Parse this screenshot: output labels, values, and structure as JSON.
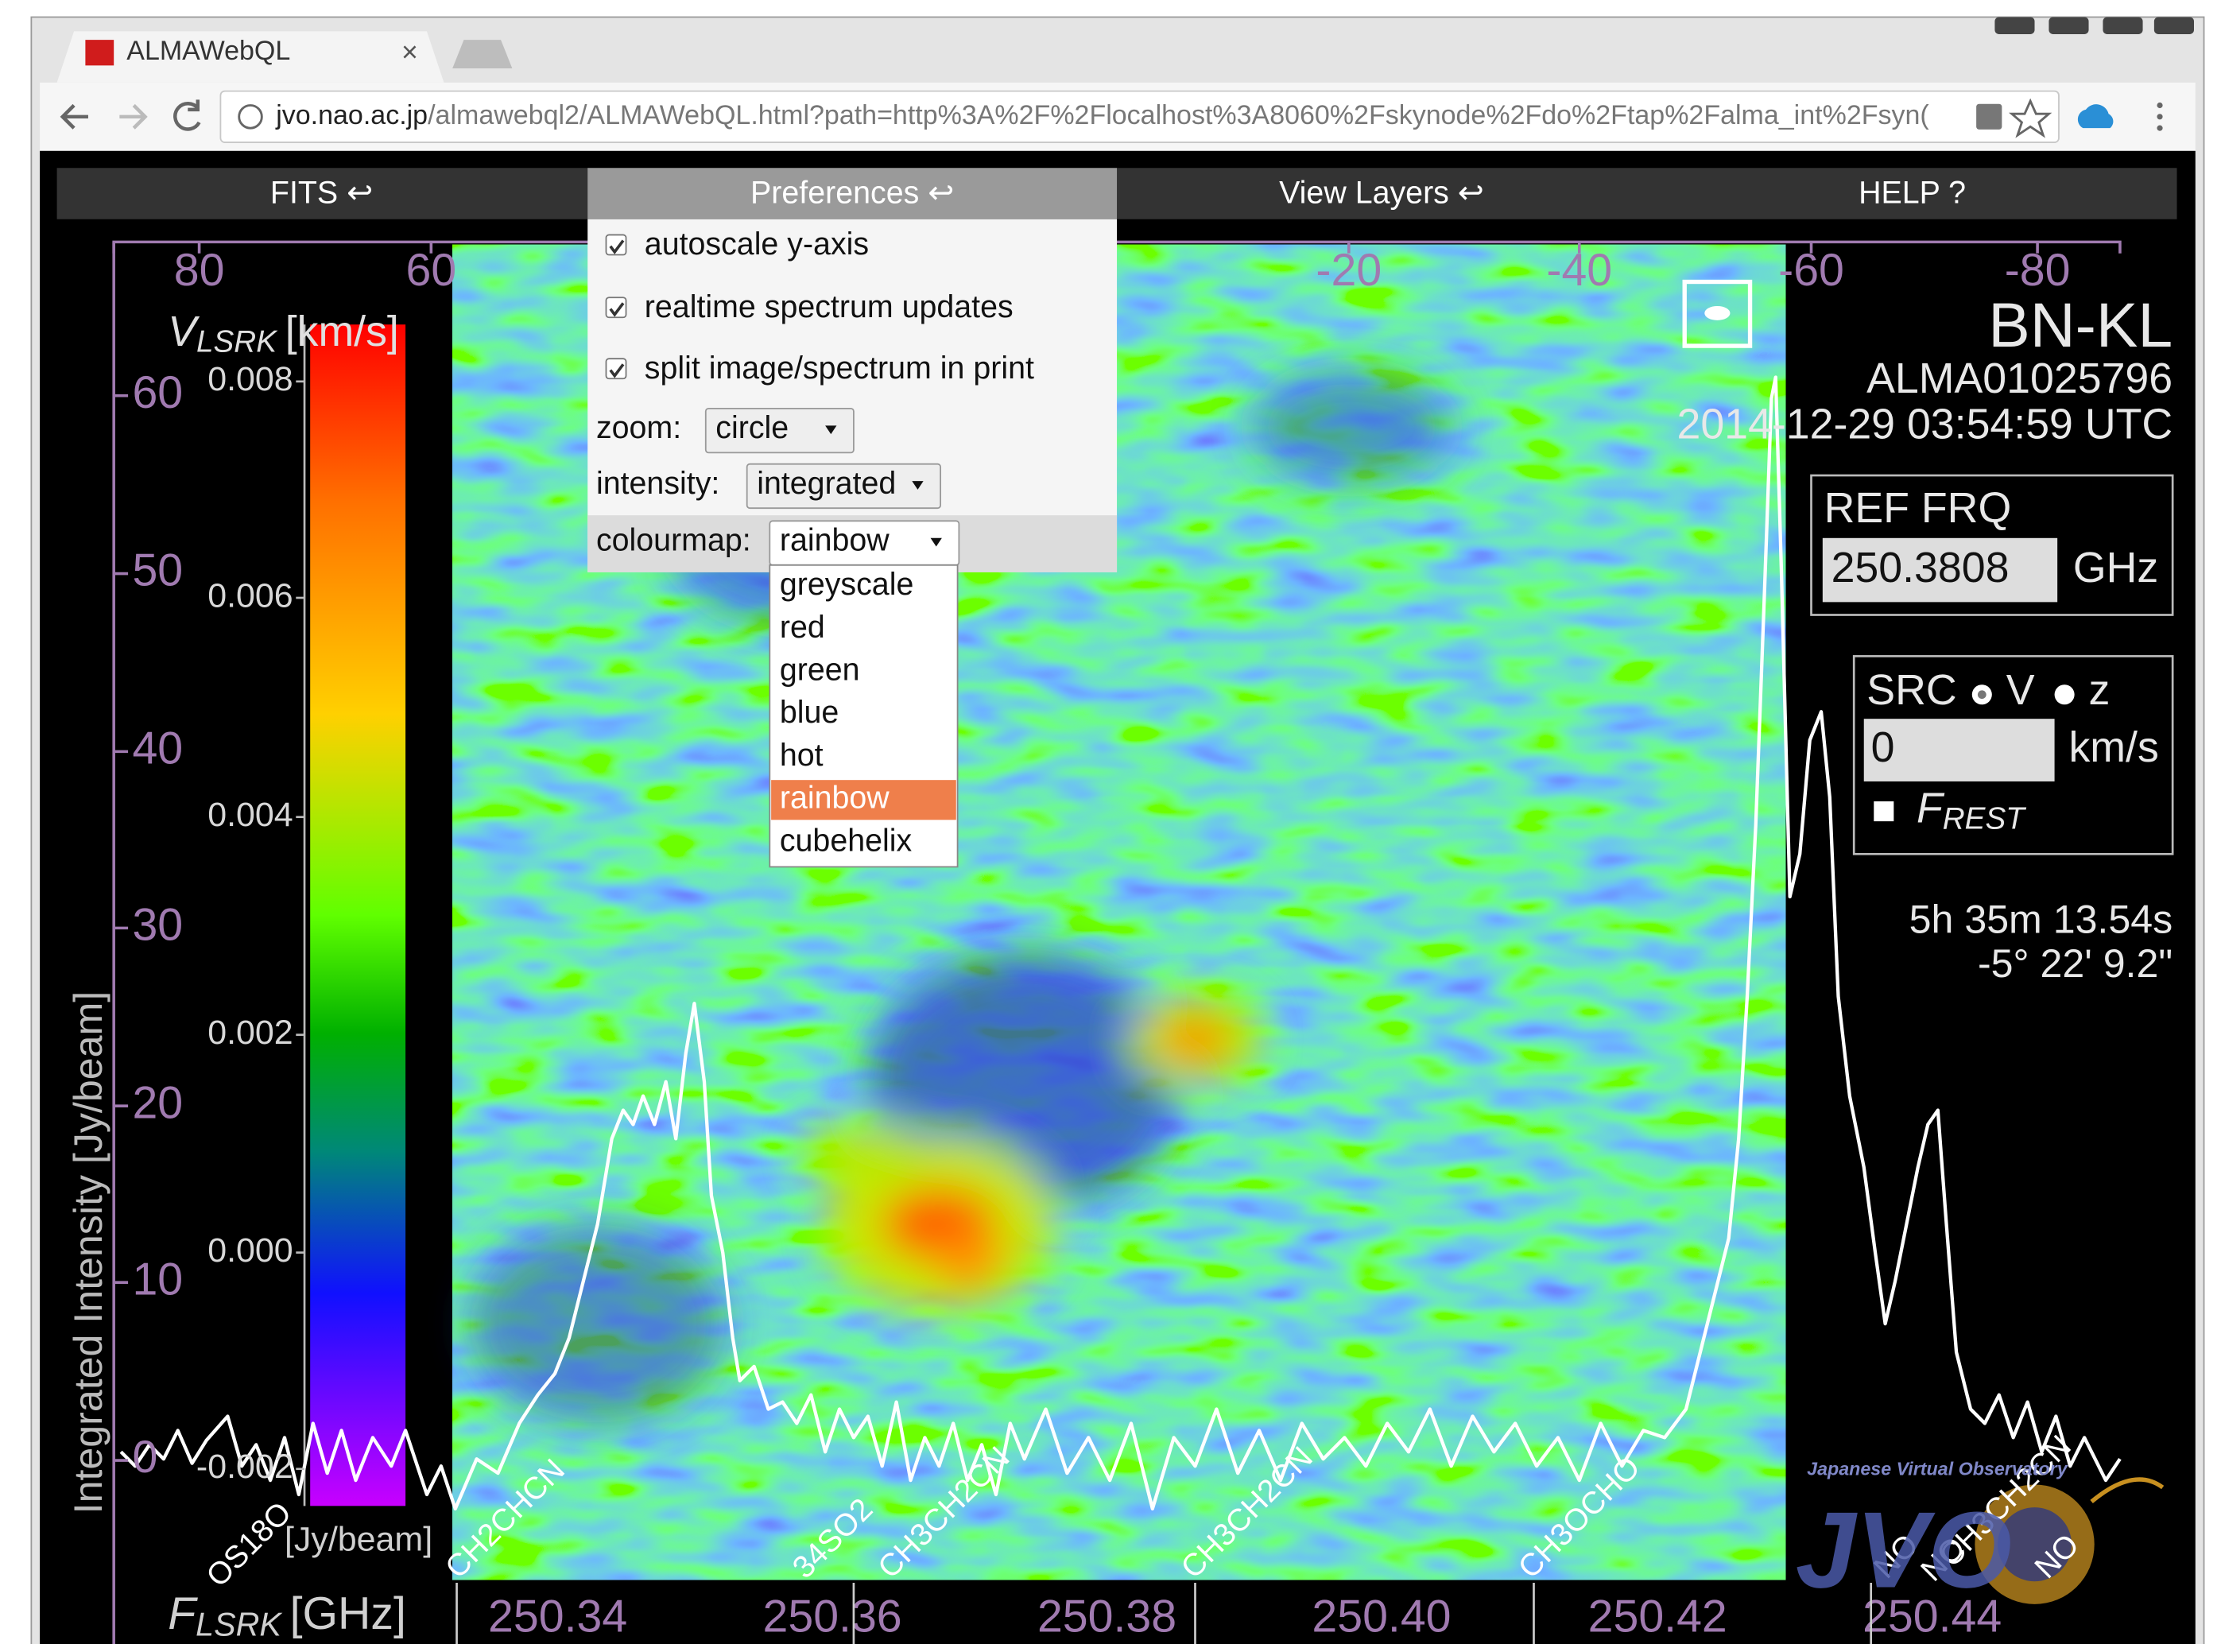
{
  "browser": {
    "tab_title": "ALMAWebQL",
    "tab_close": "×",
    "url_host": "jvo.nao.ac.jp",
    "url_path": "/almawebql2/ALMAWebQL.html?path=http%3A%2F%2Flocalhost%3A8060%2Fskynode%2Fdo%2Ftap%2Falma_int%2Fsyn("
  },
  "menu": [
    "FITS ↩",
    "Preferences ↩",
    "View Layers ↩",
    "HELP ?"
  ],
  "preferences": {
    "checkboxes": [
      "autoscale y-axis",
      "realtime spectrum updates",
      "split image/spectrum in print"
    ],
    "zoom_label": "zoom:",
    "zoom_value": "circle",
    "intensity_label": "intensity:",
    "intensity_value": "integrated",
    "colourmap_label": "colourmap:",
    "colourmap_value": "rainbow",
    "colourmap_options": [
      "greyscale",
      "red",
      "green",
      "blue",
      "hot",
      "rainbow",
      "cubehelix"
    ]
  },
  "velocity_axis": {
    "label_v": "V",
    "label_sub": "LSRK",
    "label_unit": "[km/s]",
    "ticks": [
      "80",
      "60",
      "-20",
      "-40",
      "-60",
      "-80"
    ]
  },
  "left_axis": {
    "ticks": [
      "60",
      "50",
      "40",
      "30",
      "20",
      "10",
      "0"
    ],
    "label": "Integrated Intensity [Jy/beam]"
  },
  "colorbar": {
    "ticks": [
      "0.008",
      "0.006",
      "0.004",
      "0.002",
      "0.000",
      "-0.002"
    ],
    "unit": "[Jy/beam]"
  },
  "frequency_axis": {
    "label_f": "F",
    "label_sub": "LSRK",
    "label_unit": "[GHz]",
    "ticks": [
      "250.34",
      "250.36",
      "250.38",
      "250.40",
      "250.42",
      "250.44"
    ]
  },
  "line_labels": [
    "OS18O",
    "CH2CHCN",
    "34SO2",
    "CH3CH2CN",
    "CH3CH2CN",
    "CH3OCHO",
    "NO",
    "NO",
    "CH3CH2CN",
    "NO"
  ],
  "source": {
    "name": "BN-KL",
    "id": "ALMA01025796",
    "date": "2014-12-29 03:54:59 UTC",
    "ref_frq_label": "REF FRQ",
    "ref_frq_value": "250.3808",
    "ref_frq_unit": "GHz",
    "src_label": "SRC",
    "src_v": "V",
    "src_z": "z",
    "src_value": "0",
    "src_unit": "km/s",
    "frest_f": "F",
    "frest_sub": "REST",
    "ra": "5h 35m 13.54s",
    "dec": "-5° 22' 9.2\""
  },
  "logo": {
    "caption": "Japanese Virtual Observatory",
    "name": "JVO"
  }
}
